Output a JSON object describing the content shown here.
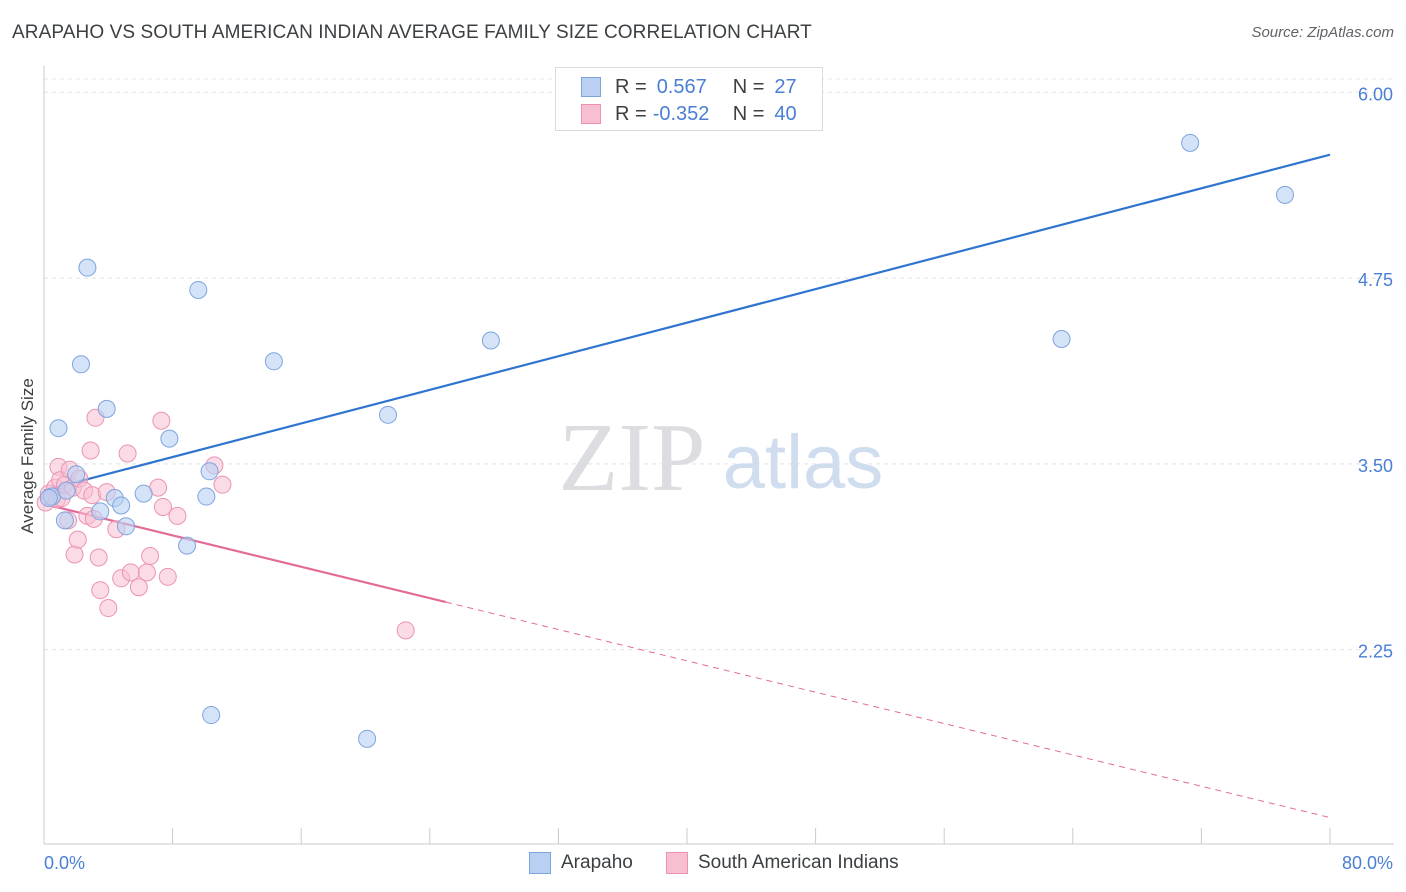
{
  "header": {
    "title": "ARAPAHO VS SOUTH AMERICAN INDIAN AVERAGE FAMILY SIZE CORRELATION CHART",
    "source": "Source: ZipAtlas.com"
  },
  "watermark": {
    "zip": "ZIP",
    "atlas": "atlas"
  },
  "legend": {
    "rows": [
      {
        "r_label": "R =",
        "r_value": "0.567",
        "n_label": "N =",
        "n_value": "27"
      },
      {
        "r_label": "R =",
        "r_value": "-0.352",
        "n_label": "N =",
        "n_value": "40"
      }
    ]
  },
  "chart_data": {
    "type": "scatter",
    "title": "ARAPAHO VS SOUTH AMERICAN INDIAN AVERAGE FAMILY SIZE CORRELATION CHART",
    "xlabel": "",
    "ylabel": "Average Family Size",
    "xlim": [
      0,
      80
    ],
    "ylim": [
      1.05,
      6.15
    ],
    "x_tick_labels": [
      "0.0%",
      "80.0%"
    ],
    "y_ticks": [
      2.25,
      3.5,
      4.75,
      6.0
    ],
    "y_tick_labels": [
      "2.25",
      "3.50",
      "4.75",
      "6.00"
    ],
    "grid": true,
    "legend_position": "top-center",
    "colors": {
      "arapaho_fill": "#b9d0f3",
      "arapaho_stroke": "#7ea4de",
      "arapaho_line": "#2f74cf",
      "sai_fill": "#f8bfd1",
      "sai_stroke": "#ec93b2",
      "sai_line": "#e26b97"
    },
    "series": [
      {
        "name": "Arapaho",
        "points": [
          [
            0.5,
            3.28
          ],
          [
            0.9,
            3.74
          ],
          [
            1.3,
            3.12
          ],
          [
            2.0,
            3.43
          ],
          [
            2.3,
            4.17
          ],
          [
            2.7,
            4.82
          ],
          [
            1.4,
            3.32
          ],
          [
            3.5,
            3.18
          ],
          [
            3.9,
            3.87
          ],
          [
            4.4,
            3.27
          ],
          [
            4.8,
            3.22
          ],
          [
            5.1,
            3.08
          ],
          [
            6.2,
            3.3
          ],
          [
            7.8,
            3.67
          ],
          [
            8.9,
            2.95
          ],
          [
            9.6,
            4.67
          ],
          [
            10.1,
            3.28
          ],
          [
            10.3,
            3.45
          ],
          [
            10.4,
            1.81
          ],
          [
            14.3,
            4.19
          ],
          [
            21.4,
            3.83
          ],
          [
            20.1,
            1.65
          ],
          [
            27.8,
            4.33
          ],
          [
            63.3,
            4.34
          ],
          [
            71.3,
            5.66
          ],
          [
            77.2,
            5.31
          ],
          [
            0.3,
            3.27
          ]
        ],
        "trend": {
          "x": [
            0,
            80
          ],
          "y": [
            3.32,
            5.58
          ],
          "style": "solid"
        }
      },
      {
        "name": "South American Indians",
        "points": [
          [
            0.1,
            3.24
          ],
          [
            0.3,
            3.3
          ],
          [
            0.5,
            3.28
          ],
          [
            0.7,
            3.34
          ],
          [
            0.8,
            3.26
          ],
          [
            0.9,
            3.48
          ],
          [
            1.0,
            3.39
          ],
          [
            1.1,
            3.27
          ],
          [
            1.3,
            3.36
          ],
          [
            1.5,
            3.12
          ],
          [
            1.6,
            3.46
          ],
          [
            1.8,
            3.34
          ],
          [
            1.9,
            2.89
          ],
          [
            2.1,
            2.99
          ],
          [
            2.2,
            3.4
          ],
          [
            2.5,
            3.32
          ],
          [
            2.7,
            3.15
          ],
          [
            2.9,
            3.59
          ],
          [
            3.0,
            3.29
          ],
          [
            3.1,
            3.13
          ],
          [
            3.2,
            3.81
          ],
          [
            3.4,
            2.87
          ],
          [
            3.5,
            2.65
          ],
          [
            3.9,
            3.31
          ],
          [
            4.0,
            2.53
          ],
          [
            4.5,
            3.06
          ],
          [
            4.8,
            2.73
          ],
          [
            5.2,
            3.57
          ],
          [
            5.4,
            2.77
          ],
          [
            5.9,
            2.67
          ],
          [
            6.4,
            2.77
          ],
          [
            6.6,
            2.88
          ],
          [
            7.1,
            3.34
          ],
          [
            7.3,
            3.79
          ],
          [
            7.4,
            3.21
          ],
          [
            7.7,
            2.74
          ],
          [
            8.3,
            3.15
          ],
          [
            10.6,
            3.49
          ],
          [
            11.1,
            3.36
          ],
          [
            22.5,
            2.38
          ]
        ],
        "trend": {
          "x": [
            0,
            25
          ],
          "y": [
            3.23,
            2.57
          ],
          "dashed_to": [
            80,
            1.12
          ],
          "style": "solid+dashed"
        }
      }
    ]
  },
  "bottom_legend": {
    "items": [
      {
        "label": "Arapaho"
      },
      {
        "label": "South American Indians"
      }
    ]
  }
}
